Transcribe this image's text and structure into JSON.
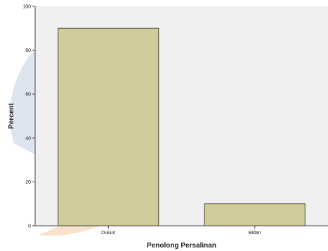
{
  "colors": {
    "plot_background": "#f0f0f0",
    "bar_fill": "#d2cc9a",
    "bar_stroke": "#4a4a3a",
    "axis": "#444444",
    "watermark_blue": "#b7c6dc",
    "watermark_orange": "#f4c59a"
  },
  "chart_data": {
    "type": "bar",
    "categories": [
      "Dukun",
      "Bidan"
    ],
    "values": [
      90,
      10
    ],
    "title": "",
    "xlabel": "Penolong Persalinan",
    "ylabel": "Percent",
    "ylim": [
      0,
      100
    ],
    "yticks": [
      0,
      20,
      40,
      60,
      80,
      100
    ],
    "ytick_labels": [
      "0",
      "20",
      "40",
      "60",
      "80",
      "100"
    ],
    "grid": false,
    "legend": "none"
  }
}
